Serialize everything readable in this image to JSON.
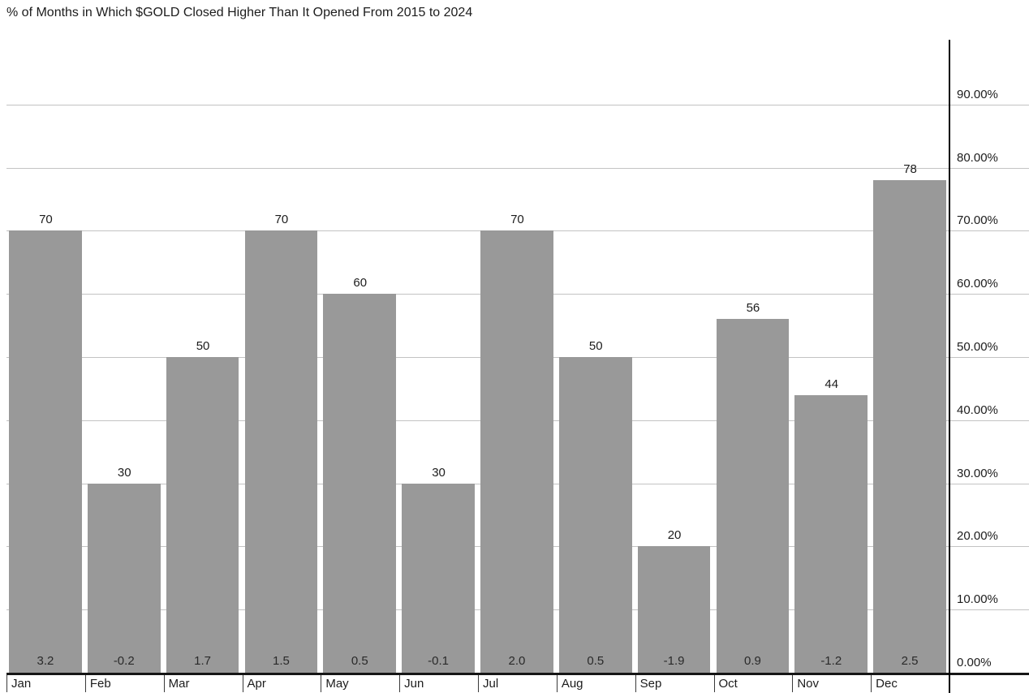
{
  "chart_data": {
    "type": "bar",
    "title": "% of Months in Which $GOLD Closed Higher Than It Opened From 2015 to 2024",
    "categories": [
      "Jan",
      "Feb",
      "Mar",
      "Apr",
      "May",
      "Jun",
      "Jul",
      "Aug",
      "Sep",
      "Oct",
      "Nov",
      "Dec"
    ],
    "values": [
      70,
      30,
      50,
      70,
      60,
      30,
      70,
      50,
      20,
      56,
      44,
      78
    ],
    "bar_bottom_values": [
      "3.2",
      "-0.2",
      "1.7",
      "1.5",
      "0.5",
      "-0.1",
      "2.0",
      "0.5",
      "-1.9",
      "0.9",
      "-1.2",
      "2.5"
    ],
    "yticks": [
      0,
      10,
      20,
      30,
      40,
      50,
      60,
      70,
      80,
      90
    ],
    "ytick_labels": [
      "0.00%",
      "10.00%",
      "20.00%",
      "30.00%",
      "40.00%",
      "50.00%",
      "60.00%",
      "70.00%",
      "80.00%",
      "90.00%"
    ],
    "ylim": [
      0,
      95
    ],
    "grid": true,
    "legend_position": "none",
    "y_axis_side": "right",
    "colors": {
      "bar": "#999999",
      "grid": "#c3c3c3",
      "axis": "#000000",
      "baseline": "#161616",
      "text": "#1c1c1c"
    }
  }
}
